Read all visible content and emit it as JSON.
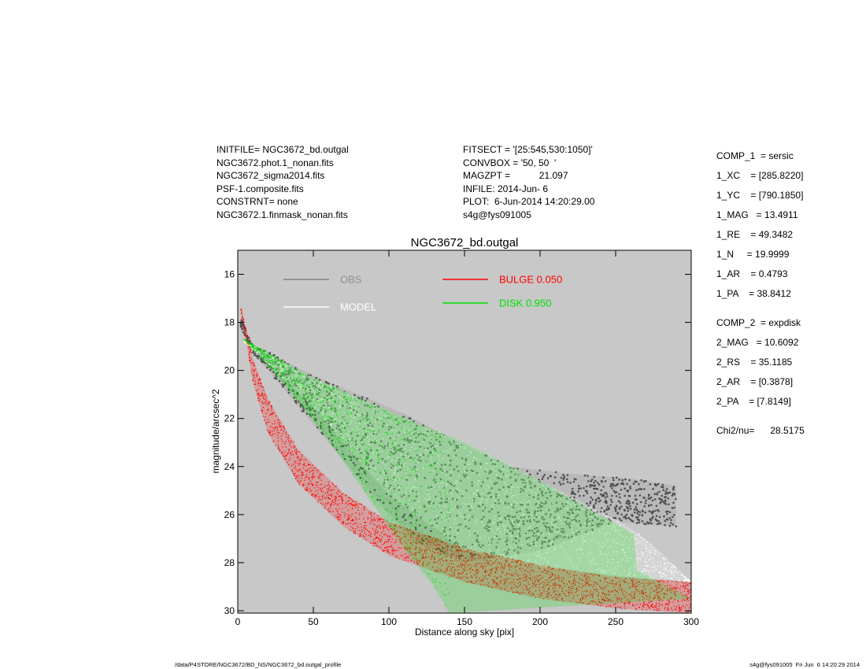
{
  "header": {
    "left": [
      "INITFILE= NGC3672_bd.outgal",
      "NGC3672.phot.1_nonan.fits",
      "NGC3672_sigma2014.fits",
      "PSF-1.composite.fits",
      "CONSTRNT= none",
      "NGC3672.1.finmask_nonan.fits"
    ],
    "mid": [
      "FITSECT = '[25:545,530:1050]'",
      "CONVBOX = '50, 50  '",
      "MAGZPT =           21.097",
      "INFILE: 2014-Jun- 6",
      "PLOT:  6-Jun-2014 14:20:29.00",
      "s4g@fys091005"
    ]
  },
  "params": {
    "group1": [
      "COMP_1  = sersic",
      "1_XC    = [285.8220]",
      "1_YC    = [790.1850]",
      "1_MAG   = 13.4911",
      "1_RE    = 49.3482",
      "1_N     = 19.9999",
      "1_AR    = 0.4793",
      "1_PA    = 38.8412"
    ],
    "group2": [
      "COMP_2  = expdisk",
      "2_MAG   = 10.6092",
      "2_RS    = 35.1185",
      "2_AR    = [0.3878]",
      "2_PA    = [7.8149]"
    ],
    "chi": "Chi2/nu=      28.5175"
  },
  "footer": {
    "left": "/data/P4STORE/NGC3672/BD_NS/NGC3672_bd.outgal_profile",
    "right": "s4g@fys091005  Fri Jun  6 14:20:29 2014"
  },
  "colors": {
    "background": "#c8c8c8",
    "obs": "#505050",
    "model": "#ffffff",
    "bulge": "#ff0000",
    "disk": "#00e000",
    "obs_legend_text": "#909090"
  },
  "chart_data": {
    "type": "scatter",
    "title": "NGC3672_bd.outgal",
    "xlabel": "Distance along sky [pix]",
    "ylabel": "magnitude/arcsec^2",
    "xlim": [
      0,
      300
    ],
    "ylim": [
      30.1,
      15.0
    ],
    "y_inverted": true,
    "xticks": [
      0,
      50,
      100,
      150,
      200,
      250,
      300
    ],
    "yticks": [
      16,
      18,
      20,
      22,
      24,
      26,
      28,
      30
    ],
    "legend": [
      {
        "label": "OBS",
        "color": "#909090",
        "line_color": "#808080"
      },
      {
        "label": "MODEL",
        "color": "#ffffff",
        "line_color": "#ffffff"
      },
      {
        "label": "BULGE  0.050",
        "color": "#ff0000",
        "line_color": "#ff0000"
      },
      {
        "label": "DISK  0.950",
        "color": "#00e000",
        "line_color": "#00e000"
      }
    ],
    "series": [
      {
        "name": "OBS",
        "style": "scatter band",
        "upper": [
          [
            2,
            17.8
          ],
          [
            10,
            19.0
          ],
          [
            20,
            19.2
          ],
          [
            30,
            19.6
          ],
          [
            50,
            20.2
          ],
          [
            80,
            21.0
          ],
          [
            110,
            21.8
          ],
          [
            140,
            22.8
          ],
          [
            180,
            24.0
          ],
          [
            220,
            24.3
          ],
          [
            260,
            24.5
          ],
          [
            290,
            24.8
          ]
        ],
        "lower": [
          [
            2,
            18.2
          ],
          [
            10,
            19.3
          ],
          [
            20,
            20.0
          ],
          [
            40,
            21.5
          ],
          [
            60,
            23.0
          ],
          [
            80,
            24.5
          ],
          [
            100,
            26.0
          ],
          [
            120,
            27.2
          ],
          [
            150,
            28.0
          ],
          [
            200,
            27.5
          ],
          [
            250,
            26.3
          ],
          [
            290,
            26.5
          ]
        ]
      },
      {
        "name": "MODEL",
        "style": "wedge",
        "upper": [
          [
            4,
            18.8
          ],
          [
            50,
            20.3
          ],
          [
            100,
            21.7
          ],
          [
            150,
            23.0
          ],
          [
            200,
            24.6
          ],
          [
            250,
            26.2
          ],
          [
            270,
            27.0
          ],
          [
            300,
            28.8
          ]
        ],
        "lower": [
          [
            4,
            18.8
          ],
          [
            50,
            21.5
          ],
          [
            100,
            25.2
          ],
          [
            150,
            27.5
          ],
          [
            200,
            28.2
          ],
          [
            260,
            28.6
          ],
          [
            300,
            28.8
          ]
        ]
      },
      {
        "name": "BULGE  0.050",
        "style": "band",
        "upper": [
          [
            2,
            17.3
          ],
          [
            10,
            19.5
          ],
          [
            20,
            21.2
          ],
          [
            40,
            23.3
          ],
          [
            70,
            25.1
          ],
          [
            100,
            26.3
          ],
          [
            150,
            27.4
          ],
          [
            200,
            28.1
          ],
          [
            250,
            28.6
          ],
          [
            300,
            28.8
          ]
        ],
        "lower": [
          [
            2,
            17.5
          ],
          [
            10,
            20.5
          ],
          [
            20,
            22.6
          ],
          [
            40,
            24.7
          ],
          [
            70,
            26.5
          ],
          [
            100,
            27.7
          ],
          [
            150,
            28.8
          ],
          [
            200,
            29.5
          ],
          [
            250,
            29.9
          ],
          [
            300,
            30.1
          ]
        ]
      },
      {
        "name": "DISK  0.950",
        "style": "wedge",
        "upper": [
          [
            4,
            18.7
          ],
          [
            50,
            20.3
          ],
          [
            100,
            21.7
          ],
          [
            150,
            23.0
          ],
          [
            200,
            24.6
          ],
          [
            262,
            26.8
          ],
          [
            264,
            28.3
          ],
          [
            300,
            29.5
          ]
        ],
        "lower": [
          [
            4,
            18.7
          ],
          [
            30,
            20.5
          ],
          [
            60,
            22.9
          ],
          [
            90,
            25.6
          ],
          [
            110,
            27.4
          ],
          [
            130,
            29.0
          ],
          [
            140,
            30.1
          ]
        ]
      }
    ]
  }
}
